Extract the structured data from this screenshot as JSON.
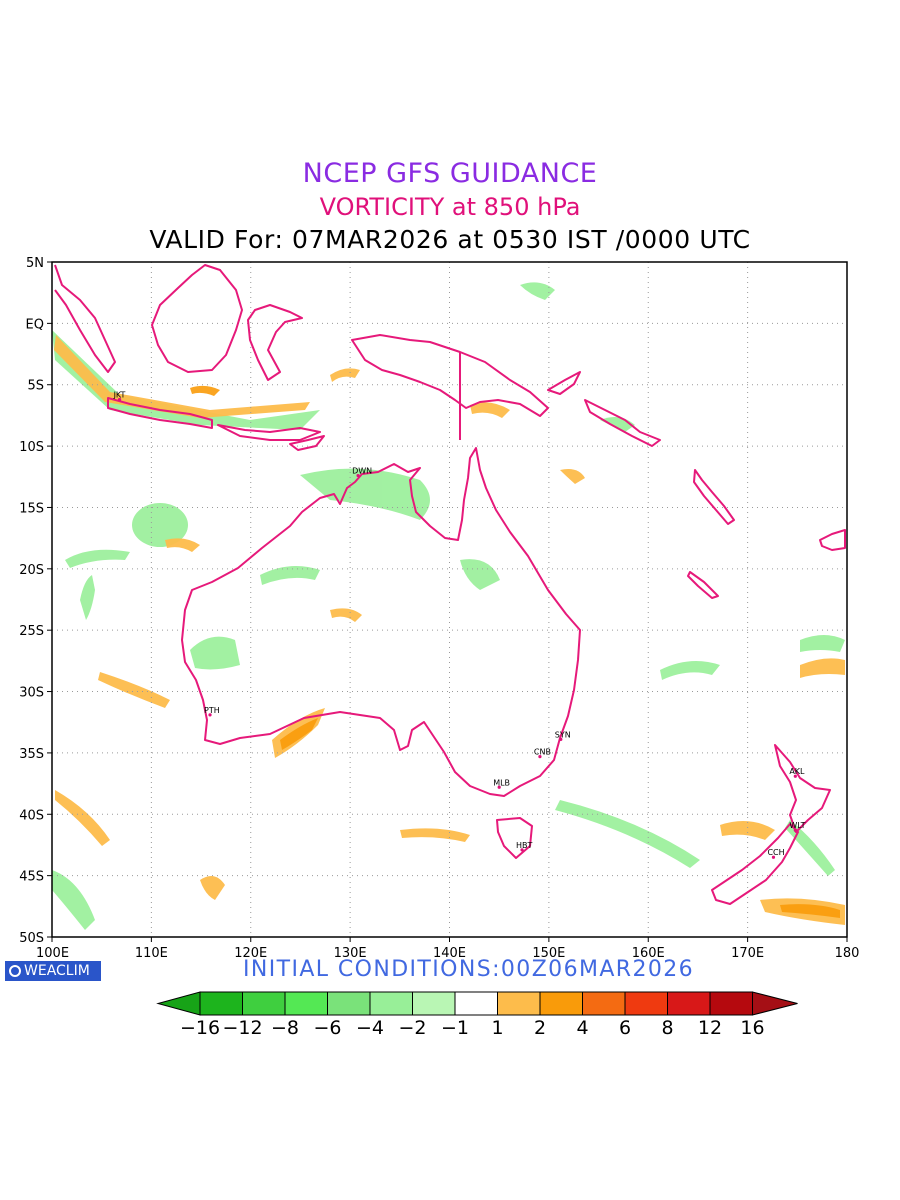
{
  "titles": {
    "line1": "NCEP GFS GUIDANCE",
    "line2": "VORTICITY at 850 hPa",
    "line3": "VALID For: 07MAR2026 at 0530 IST /0000 UTC"
  },
  "map": {
    "lon_range": [
      100,
      180
    ],
    "lat_range": [
      -50,
      5
    ],
    "x_tick_labels": [
      "100E",
      "110E",
      "120E",
      "130E",
      "140E",
      "150E",
      "160E",
      "170E",
      "180"
    ],
    "y_tick_labels": [
      "5N",
      "EQ",
      "5S",
      "10S",
      "15S",
      "20S",
      "25S",
      "30S",
      "35S",
      "40S",
      "45S",
      "50S"
    ],
    "coastline_color": "#e6197a",
    "grid": "dotted",
    "cities": [
      {
        "code": "JKT",
        "lon": 106.8,
        "lat": -6.2
      },
      {
        "code": "DWN",
        "lon": 130.8,
        "lat": -12.4
      },
      {
        "code": "PTH",
        "lon": 115.9,
        "lat": -31.9
      },
      {
        "code": "SYN",
        "lon": 151.2,
        "lat": -33.9
      },
      {
        "code": "CNB",
        "lon": 149.1,
        "lat": -35.3
      },
      {
        "code": "MLB",
        "lon": 145.0,
        "lat": -37.8
      },
      {
        "code": "HBT",
        "lon": 147.3,
        "lat": -42.9
      },
      {
        "code": "AKL",
        "lon": 174.8,
        "lat": -36.9
      },
      {
        "code": "WLT",
        "lon": 174.8,
        "lat": -41.3
      },
      {
        "code": "CCH",
        "lon": 172.6,
        "lat": -43.5
      }
    ]
  },
  "footer": {
    "logo_text": "WEACLIM",
    "initial_conditions": "INITIAL  CONDITIONS:00Z06MAR2026"
  },
  "colorbar": {
    "labels": [
      "−16",
      "−12",
      "−8",
      "−6",
      "−4",
      "−2",
      "−1",
      "1",
      "2",
      "4",
      "6",
      "8",
      "12",
      "16"
    ],
    "left_arrow_color": "#17a317",
    "right_arrow_color": "#a50f15",
    "bin_colors": [
      "#1db41d",
      "#3fcf3f",
      "#54e854",
      "#7ae27a",
      "#98ef98",
      "#b9f6b4",
      "#ffffff",
      "#fdbc4b",
      "#f99b0a",
      "#f46b12",
      "#ef3a10",
      "#d81818",
      "#b5090e"
    ]
  }
}
